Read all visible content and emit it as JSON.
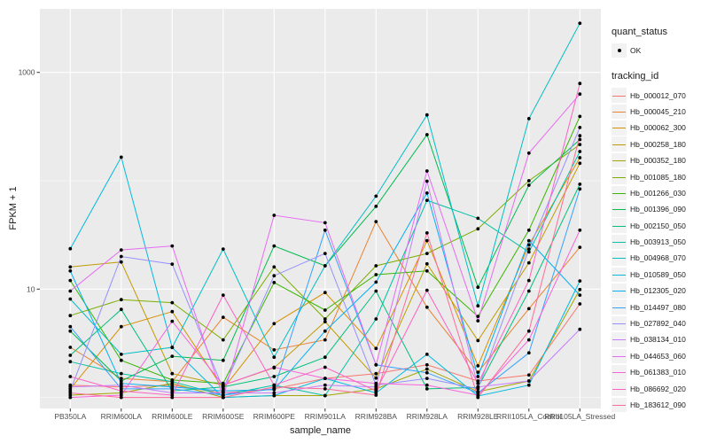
{
  "chart_data": {
    "type": "line",
    "title": "",
    "xlabel": "sample_name",
    "ylabel": "FPKM + 1",
    "y_scale": "log10",
    "y_axis_ticks": [
      "10",
      "1000"
    ],
    "y_tick_values": [
      10,
      1000
    ],
    "y_minor_values": [
      1,
      100
    ],
    "ylim": [
      0.8,
      3900
    ],
    "grid": true,
    "legend_position": "right",
    "categories": [
      "PB350LA",
      "RRIM600LA",
      "RRIM600LE",
      "RRIM600SE",
      "RRIM600PE",
      "RRIM901LA",
      "RRIM928BA",
      "RRIM928LA",
      "RRIM928LE",
      "RRII105LA_Control",
      "RRII105LA_Stressed"
    ],
    "series": [
      {
        "name": "Hb_000012_070",
        "color": "#F8766D",
        "values": [
          1.3,
          1.25,
          1.3,
          1.1,
          1.2,
          1.5,
          1.66,
          2.0,
          1.42,
          1.61,
          7.3
        ]
      },
      {
        "name": "Hb_000045_210",
        "color": "#EA8331",
        "values": [
          2.9,
          1.5,
          1.4,
          5.5,
          2.75,
          3.4,
          42.0,
          6.8,
          1.71,
          6.6,
          24.3
        ]
      },
      {
        "name": "Hb_000062_300",
        "color": "#D89000",
        "values": [
          1.2,
          4.5,
          6.2,
          1.2,
          4.8,
          9.3,
          2.83,
          28.0,
          1.96,
          25.6,
          163
        ]
      },
      {
        "name": "Hb_000258_180",
        "color": "#C09B00",
        "values": [
          16.0,
          17.8,
          1.66,
          1.3,
          1.88,
          5.0,
          1.51,
          17.1,
          3.35,
          17.5,
          145
        ]
      },
      {
        "name": "Hb_000352_180",
        "color": "#A3A500",
        "values": [
          1.05,
          1.1,
          1.35,
          1.0,
          1.04,
          1.04,
          1.2,
          1.83,
          1.13,
          1.42,
          9.9
        ]
      },
      {
        "name": "Hb_001085_180",
        "color": "#7CAE00",
        "values": [
          5.7,
          8.0,
          7.5,
          3.4,
          16.0,
          5.3,
          16.4,
          21.3,
          36.0,
          100,
          216
        ]
      },
      {
        "name": "Hb_001266_030",
        "color": "#39B600",
        "values": [
          12.0,
          2.2,
          1.45,
          1.35,
          11.5,
          6.4,
          13.6,
          14.7,
          5.6,
          35.0,
          392
        ]
      },
      {
        "name": "Hb_001396_090",
        "color": "#00BB4E",
        "values": [
          4.1,
          1.42,
          2.4,
          2.2,
          25.0,
          16.4,
          58.0,
          266,
          10.4,
          91.0,
          240
        ]
      },
      {
        "name": "Hb_002150_050",
        "color": "#00BF7D",
        "values": [
          2.45,
          6.5,
          1.15,
          1.25,
          1.56,
          2.35,
          9.6,
          1.2,
          1.24,
          9.6,
          93
        ]
      },
      {
        "name": "Hb_003913_050",
        "color": "#00C1A3",
        "values": [
          2.14,
          1.66,
          1.4,
          1.05,
          1.3,
          1.04,
          5.3,
          66.0,
          45.0,
          22.0,
          186
        ]
      },
      {
        "name": "Hb_004968_070",
        "color": "#00BFC4",
        "values": [
          8.1,
          2.5,
          2.9,
          23.4,
          2.35,
          16.4,
          72.0,
          405,
          7.0,
          374,
          2840
        ]
      },
      {
        "name": "Hb_010589_050",
        "color": "#00BAE0",
        "values": [
          23.6,
          165,
          2.89,
          1.0,
          1.04,
          1.5,
          1.1,
          2.5,
          1.03,
          1.3,
          11.9
        ]
      },
      {
        "name": "Hb_012305_020",
        "color": "#00B0F6",
        "values": [
          14.7,
          1.35,
          1.25,
          1.15,
          1.18,
          4.1,
          11.6,
          77.0,
          1.56,
          28.0,
          8.8
        ]
      },
      {
        "name": "Hb_014497_080",
        "color": "#35A2FF",
        "values": [
          4.5,
          1.2,
          1.2,
          1.05,
          1.2,
          35.0,
          2.0,
          1.69,
          1.1,
          2.58,
          84
        ]
      },
      {
        "name": "Hb_027892_040",
        "color": "#9590FF",
        "values": [
          1.15,
          20.0,
          17.0,
          1.2,
          13.3,
          21.3,
          1.3,
          1.5,
          1.2,
          23.4,
          310
        ]
      },
      {
        "name": "Hb_038134_010",
        "color": "#C77CFF",
        "values": [
          1.25,
          1.3,
          1.1,
          1.1,
          1.1,
          1.3,
          1.25,
          99.0,
          1.25,
          1.42,
          4.25
        ]
      },
      {
        "name": "Hb_044653_060",
        "color": "#E76BF3",
        "values": [
          9.6,
          23.0,
          25.0,
          1.0,
          48.0,
          41.0,
          2.0,
          123,
          5.1,
          180,
          630
        ]
      },
      {
        "name": "Hb_061383_010",
        "color": "#FA62DB",
        "values": [
          1.0,
          1.05,
          5.05,
          1.3,
          1.9,
          1.5,
          1.35,
          1.3,
          1.05,
          3.4,
          35.0
        ]
      },
      {
        "name": "Hb_086692_020",
        "color": "#FF61C3",
        "values": [
          1.56,
          1.15,
          1.05,
          8.8,
          1.3,
          1.9,
          1.15,
          9.75,
          1.35,
          12.0,
          790
        ]
      },
      {
        "name": "Hb_183612_090",
        "color": "#FF6A98",
        "values": [
          1.1,
          1.0,
          1.0,
          1.0,
          1.25,
          1.2,
          1.05,
          33.0,
          1.0,
          4.1,
          260
        ]
      }
    ],
    "legend": {
      "quant_status": {
        "title": "quant_status",
        "items": [
          {
            "label": "OK",
            "marker": "point",
            "color": "#000000"
          }
        ]
      },
      "tracking_id": {
        "title": "tracking_id"
      }
    },
    "theme": {
      "panel_bg": "#EBEBEB",
      "grid_major": "#FFFFFF",
      "grid_minor": "#FFFFFF",
      "point_color": "#000000",
      "tick_color": "#333333",
      "tick_label_color": "#4D4D4D",
      "title_color": "#1A1A1A",
      "legend_key_bg": "#F2F2F2"
    }
  }
}
